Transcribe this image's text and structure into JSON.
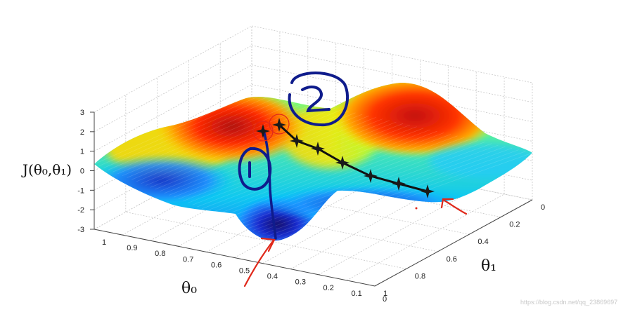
{
  "chart_data": {
    "type": "surface",
    "zlabel": "J(θ₀,θ₁)",
    "xlabel": "θ₀",
    "ylabel": "θ₁",
    "zlim": [
      -3,
      3
    ],
    "xlim": [
      0,
      1
    ],
    "ylim": [
      0,
      1
    ],
    "ztick_labels": [
      "-3",
      "-2",
      "-1",
      "0",
      "1",
      "2",
      "3"
    ],
    "xtick_labels": [
      "1",
      "0.9",
      "0.8",
      "0.7",
      "0.6",
      "0.5",
      "0.4",
      "0.3",
      "0.2",
      "0.1",
      "0"
    ],
    "ytick_labels": [
      "0",
      "0.2",
      "0.4",
      "0.6",
      "0.8",
      "1"
    ],
    "grid": true,
    "colormap": "jet",
    "annotations": [
      {
        "label": "1",
        "color": "#0f1c8c"
      },
      {
        "label": "2",
        "color": "#0f1c8c"
      }
    ],
    "paths": [
      {
        "color": "#0f1c8c",
        "marker": "line"
      },
      {
        "color": "#111111",
        "marker": "star"
      }
    ]
  },
  "watermark": "https://blog.csdn.net/qq_23869697"
}
